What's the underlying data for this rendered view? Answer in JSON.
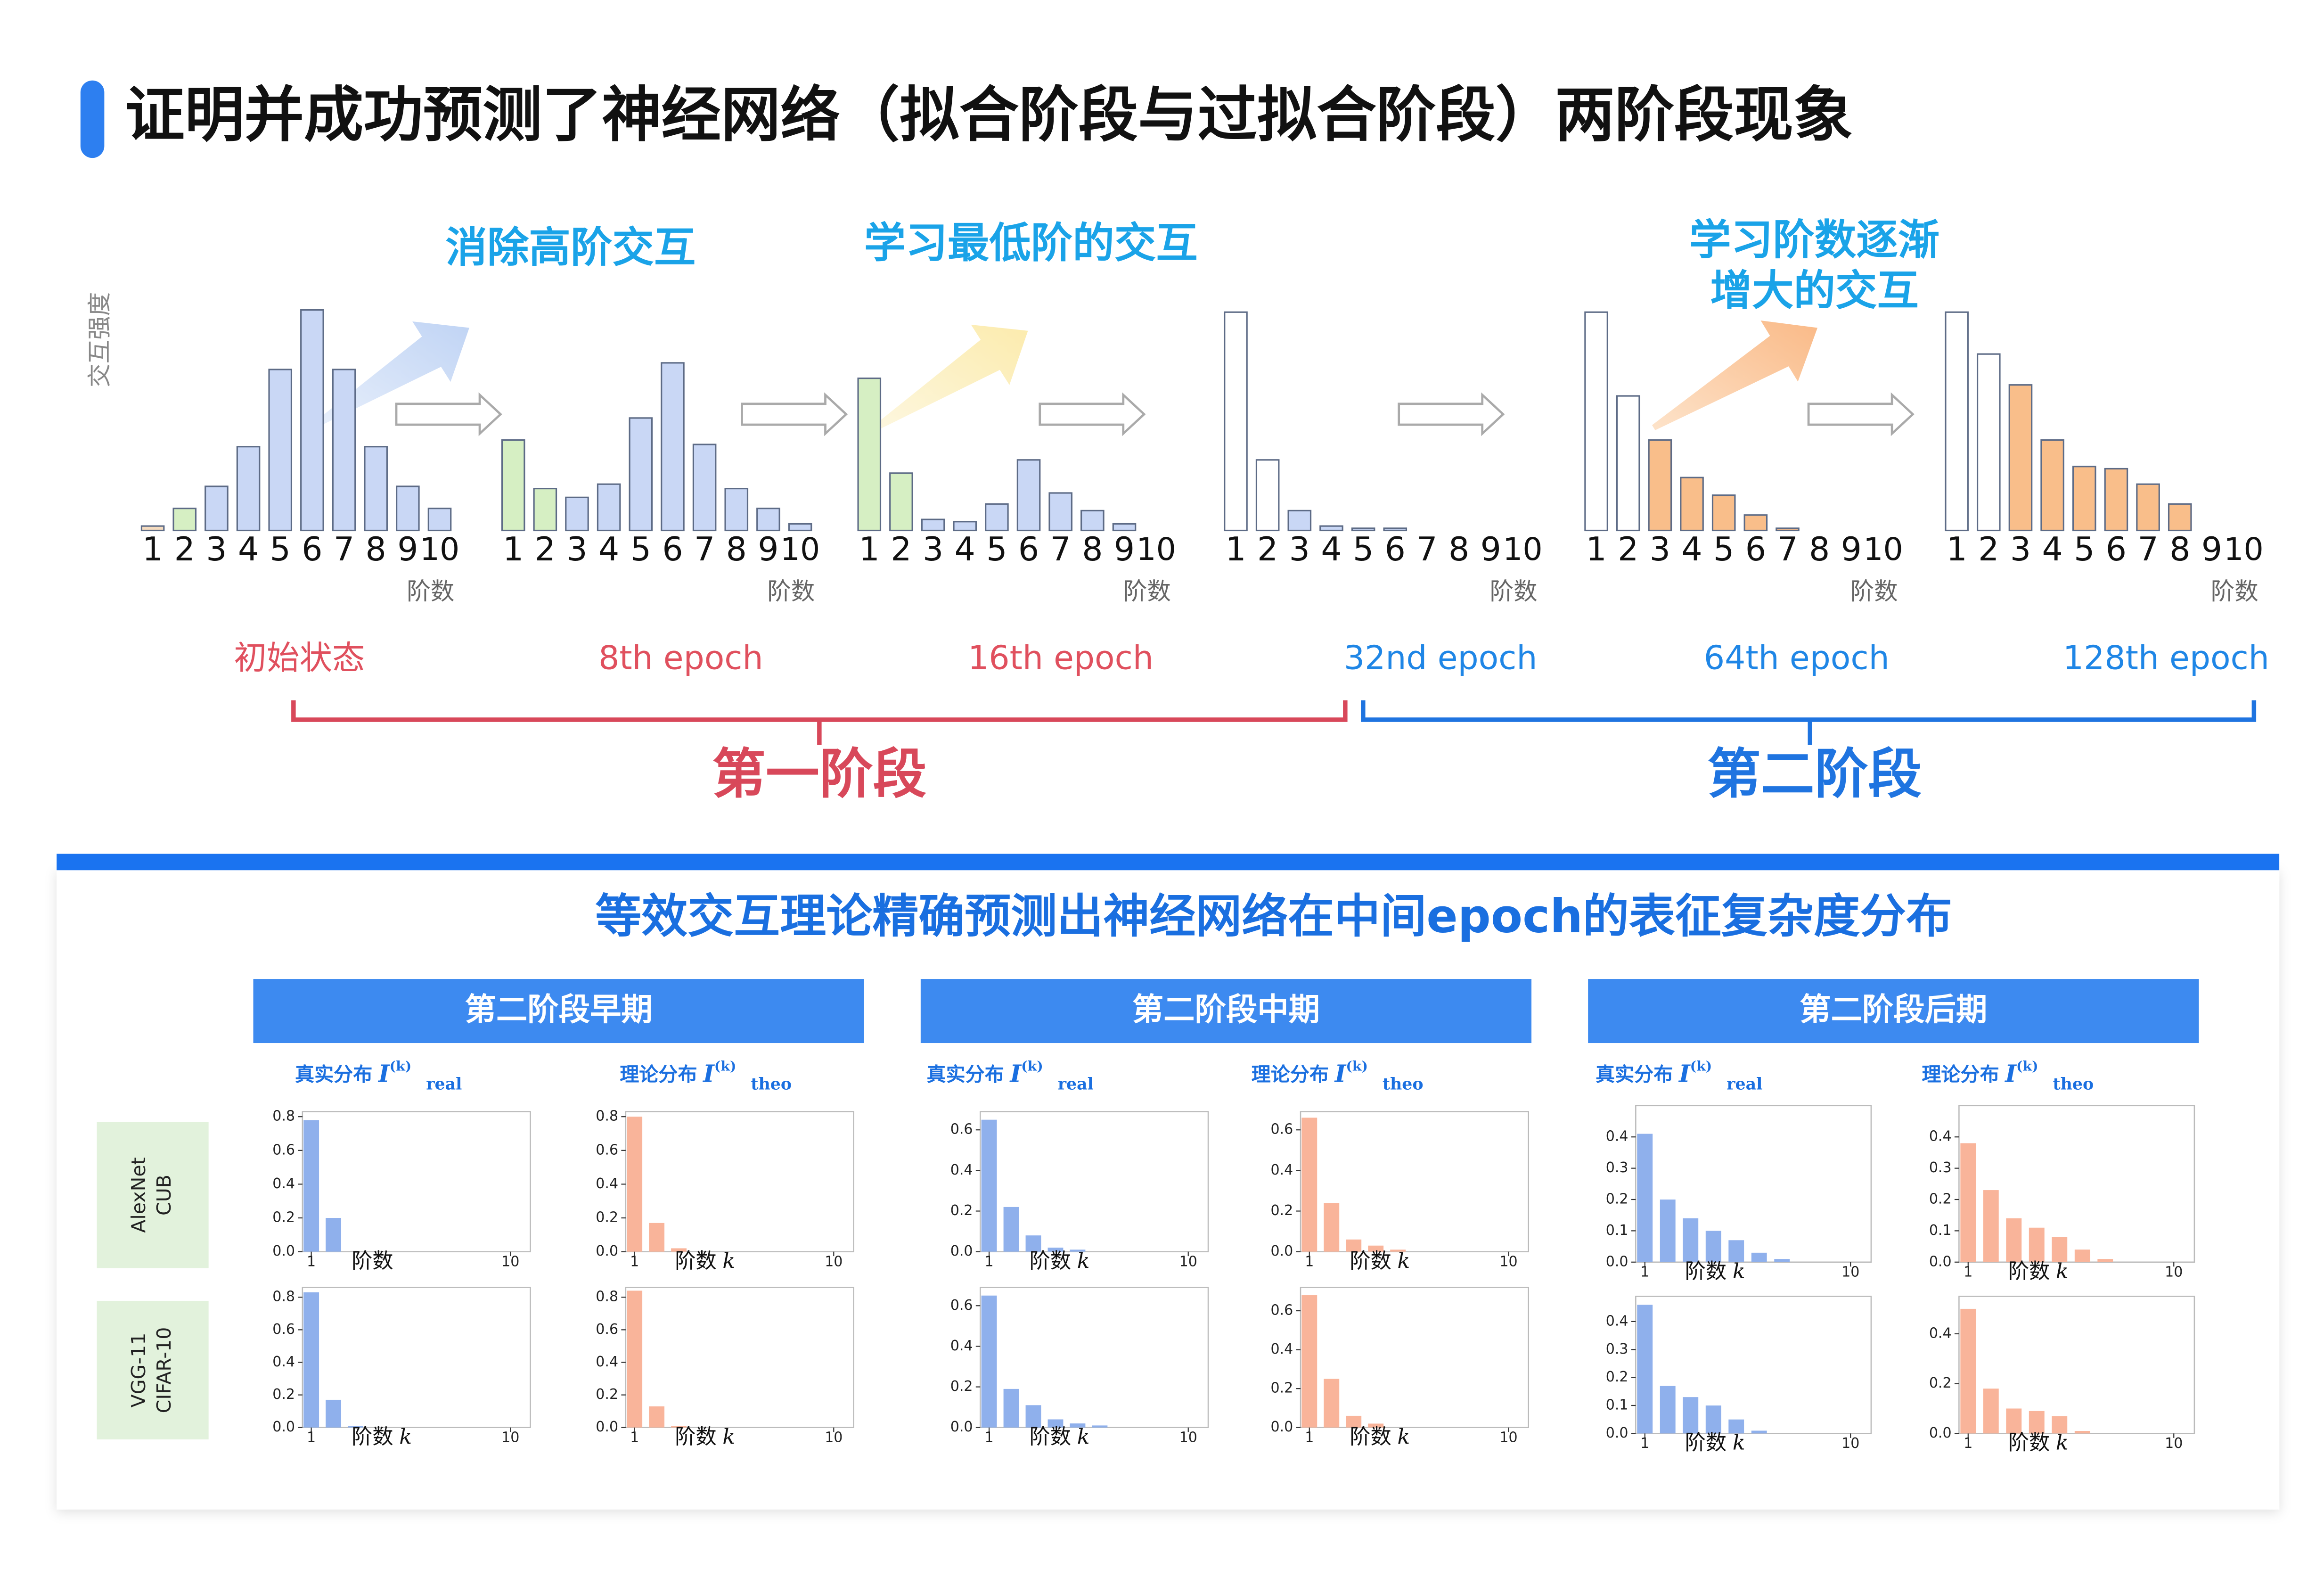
{
  "header": {
    "title": "证明并成功预测了神经网络（拟合阶段与过拟合阶段）两阶段现象"
  },
  "top": {
    "ylabel": "交互强度",
    "annotations": [
      [
        "消除高阶交互"
      ],
      [
        "学习最低阶的交互"
      ],
      [
        "学习阶数逐渐",
        "增大的交互"
      ]
    ],
    "phases": [
      "第一阶段",
      "第二阶段"
    ]
  },
  "chart_data": [
    {
      "type": "bar",
      "caption": "初始状态",
      "caption_color": "#e0505e",
      "xlabel": "阶数",
      "categories": [
        "1",
        "2",
        "3",
        "4",
        "5",
        "6",
        "7",
        "8",
        "9",
        "10"
      ],
      "ylim": [
        0,
        1
      ],
      "values": [
        0.02,
        0.1,
        0.2,
        0.38,
        0.73,
        1.0,
        0.73,
        0.38,
        0.2,
        0.1
      ],
      "colors": [
        "#f5dcc0",
        "#d6efc3",
        "#c9d7f5",
        "#c9d7f5",
        "#c9d7f5",
        "#c9d7f5",
        "#c9d7f5",
        "#c9d7f5",
        "#c9d7f5",
        "#c9d7f5"
      ]
    },
    {
      "type": "bar",
      "caption": "8th epoch",
      "caption_color": "#e0505e",
      "xlabel": "阶数",
      "categories": [
        "1",
        "2",
        "3",
        "4",
        "5",
        "6",
        "7",
        "8",
        "9",
        "10"
      ],
      "ylim": [
        0,
        1
      ],
      "values": [
        0.41,
        0.19,
        0.15,
        0.21,
        0.51,
        0.76,
        0.39,
        0.19,
        0.1,
        0.03
      ],
      "colors": [
        "#d6efc3",
        "#d6efc3",
        "#c9d7f5",
        "#c9d7f5",
        "#c9d7f5",
        "#c9d7f5",
        "#c9d7f5",
        "#c9d7f5",
        "#c9d7f5",
        "#c9d7f5"
      ]
    },
    {
      "type": "bar",
      "caption": "16th epoch",
      "caption_color": "#e0505e",
      "xlabel": "阶数",
      "categories": [
        "1",
        "2",
        "3",
        "4",
        "5",
        "6",
        "7",
        "8",
        "9",
        "10"
      ],
      "ylim": [
        0,
        1
      ],
      "values": [
        0.69,
        0.26,
        0.05,
        0.04,
        0.12,
        0.32,
        0.17,
        0.09,
        0.03,
        0
      ],
      "colors": [
        "#d6efc3",
        "#d6efc3",
        "#c9d7f5",
        "#c9d7f5",
        "#c9d7f5",
        "#c9d7f5",
        "#c9d7f5",
        "#c9d7f5",
        "#c9d7f5",
        "#c9d7f5"
      ]
    },
    {
      "type": "bar",
      "caption": "32nd epoch",
      "caption_color": "#1f86e6",
      "xlabel": "阶数",
      "categories": [
        "1",
        "2",
        "3",
        "4",
        "5",
        "6",
        "7",
        "8",
        "9",
        "10"
      ],
      "ylim": [
        0,
        1
      ],
      "values": [
        0.99,
        0.32,
        0.09,
        0.02,
        0.01,
        0.01,
        0,
        0,
        0,
        0
      ],
      "colors": [
        "#ffffff",
        "#ffffff",
        "#c9d7f5",
        "#c9d7f5",
        "#c9d7f5",
        "#c9d7f5",
        "#c9d7f5",
        "#c9d7f5",
        "#c9d7f5",
        "#c9d7f5"
      ]
    },
    {
      "type": "bar",
      "caption": "64th epoch",
      "caption_color": "#1f86e6",
      "xlabel": "阶数",
      "categories": [
        "1",
        "2",
        "3",
        "4",
        "5",
        "6",
        "7",
        "8",
        "9",
        "10"
      ],
      "ylim": [
        0,
        1
      ],
      "values": [
        0.99,
        0.61,
        0.41,
        0.24,
        0.16,
        0.07,
        0.01,
        0,
        0,
        0
      ],
      "colors": [
        "#ffffff",
        "#ffffff",
        "#f9be8a",
        "#f9be8a",
        "#f9be8a",
        "#f9be8a",
        "#f9be8a",
        "#f9be8a",
        "#f9be8a",
        "#f9be8a"
      ]
    },
    {
      "type": "bar",
      "caption": "128th epoch",
      "caption_color": "#1f86e6",
      "xlabel": "阶数",
      "categories": [
        "1",
        "2",
        "3",
        "4",
        "5",
        "6",
        "7",
        "8",
        "9",
        "10"
      ],
      "ylim": [
        0,
        1
      ],
      "values": [
        0.99,
        0.8,
        0.66,
        0.41,
        0.29,
        0.28,
        0.21,
        0.12,
        0,
        0
      ],
      "colors": [
        "#ffffff",
        "#ffffff",
        "#f9be8a",
        "#f9be8a",
        "#f9be8a",
        "#f9be8a",
        "#f9be8a",
        "#f9be8a",
        "#f9be8a",
        "#f9be8a"
      ]
    },
    {
      "type": "bar",
      "title": "真实分布",
      "symbol": "I",
      "superscript": "(k)",
      "subscript": "real",
      "xlabel": "阶数",
      "color": "#8fb0ec",
      "x": [
        1,
        2,
        3,
        4,
        5,
        6,
        7,
        8,
        9,
        10
      ],
      "xlim": [
        0.6,
        10.9
      ],
      "xticks": [
        1,
        10
      ],
      "ylim": [
        0,
        0.83
      ],
      "yticks": [
        {
          "value": 0,
          "label": "0.0"
        },
        0.2,
        0.4,
        0.6,
        0.8
      ],
      "values": [
        0.78,
        0.2,
        0,
        0,
        0,
        0,
        0,
        0,
        0,
        0
      ]
    },
    {
      "type": "bar",
      "title": "理论分布",
      "symbol": "I",
      "superscript": "(k)",
      "subscript": "theo",
      "xlabel": "阶数",
      "xlabel_var": "k",
      "color": "#f9b49a",
      "x": [
        1,
        2,
        3,
        4,
        5,
        6,
        7,
        8,
        9,
        10
      ],
      "xlim": [
        0.6,
        10.9
      ],
      "xticks": [
        1,
        10
      ],
      "ylim": [
        0,
        0.83
      ],
      "yticks": [
        {
          "value": 0,
          "label": "0.0"
        },
        0.2,
        0.4,
        0.6,
        0.8
      ],
      "values": [
        0.8,
        0.17,
        0.02,
        0,
        0,
        0,
        0,
        0,
        0,
        0
      ]
    },
    {
      "type": "bar",
      "title": "真实分布",
      "symbol": "I",
      "superscript": "(k)",
      "subscript": "real",
      "xlabel": "阶数",
      "xlabel_var": "k",
      "color": "#8fb0ec",
      "x": [
        1,
        2,
        3,
        4,
        5,
        6,
        7,
        8,
        9,
        10
      ],
      "xlim": [
        0.6,
        10.9
      ],
      "xticks": [
        1,
        10
      ],
      "ylim": [
        0,
        0.69
      ],
      "yticks": [
        {
          "value": 0,
          "label": "0.0"
        },
        0.2,
        0.4,
        0.6
      ],
      "values": [
        0.65,
        0.22,
        0.08,
        0.02,
        0.01,
        0,
        0,
        0,
        0,
        0
      ]
    },
    {
      "type": "bar",
      "title": "理论分布",
      "symbol": "I",
      "superscript": "(k)",
      "subscript": "theo",
      "xlabel": "阶数",
      "xlabel_var": "k",
      "color": "#f9b49a",
      "x": [
        1,
        2,
        3,
        4,
        5,
        6,
        7,
        8,
        9,
        10
      ],
      "xlim": [
        0.6,
        10.9
      ],
      "xticks": [
        1,
        10
      ],
      "ylim": [
        0,
        0.69
      ],
      "yticks": [
        {
          "value": 0,
          "label": "0.0"
        },
        0.2,
        0.4,
        0.6
      ],
      "values": [
        0.66,
        0.24,
        0.06,
        0.03,
        0.01,
        0,
        0,
        0,
        0,
        0
      ]
    },
    {
      "type": "bar",
      "title": "真实分布",
      "symbol": "I",
      "superscript": "(k)",
      "subscript": "real",
      "xlabel": "阶数",
      "xlabel_var": "k",
      "color": "#8fb0ec",
      "x": [
        1,
        2,
        3,
        4,
        5,
        6,
        7,
        8,
        9,
        10
      ],
      "xlim": [
        0.6,
        10.9
      ],
      "xticks": [
        1,
        10
      ],
      "ylim": [
        0,
        0.5
      ],
      "yticks": [
        {
          "value": 0,
          "label": "0.0"
        },
        0.1,
        0.2,
        0.3,
        0.4
      ],
      "values": [
        0.41,
        0.2,
        0.14,
        0.1,
        0.07,
        0.03,
        0.01,
        0,
        0,
        0
      ]
    },
    {
      "type": "bar",
      "title": "理论分布",
      "symbol": "I",
      "superscript": "(k)",
      "subscript": "theo",
      "xlabel": "阶数",
      "xlabel_var": "k",
      "color": "#f9b49a",
      "x": [
        1,
        2,
        3,
        4,
        5,
        6,
        7,
        8,
        9,
        10
      ],
      "xlim": [
        0.6,
        10.9
      ],
      "xticks": [
        1,
        10
      ],
      "ylim": [
        0,
        0.5
      ],
      "yticks": [
        {
          "value": 0,
          "label": "0.0"
        },
        0.1,
        0.2,
        0.3,
        0.4
      ],
      "values": [
        0.38,
        0.23,
        0.14,
        0.11,
        0.08,
        0.04,
        0.01,
        0,
        0,
        0
      ]
    },
    {
      "type": "bar",
      "xlabel": "阶数",
      "xlabel_var": "k",
      "color": "#8fb0ec",
      "x": [
        1,
        2,
        3,
        4,
        5,
        6,
        7,
        8,
        9,
        10
      ],
      "xlim": [
        0.6,
        10.9
      ],
      "xticks": [
        1,
        10
      ],
      "ylim": [
        0,
        0.86
      ],
      "yticks": [
        {
          "value": 0,
          "label": "0.0"
        },
        0.2,
        0.4,
        0.6,
        0.8
      ],
      "values": [
        0.83,
        0.17,
        0.01,
        0,
        0,
        0,
        0,
        0,
        0,
        0
      ]
    },
    {
      "type": "bar",
      "xlabel": "阶数",
      "xlabel_var": "k",
      "color": "#f9b49a",
      "x": [
        1,
        2,
        3,
        4,
        5,
        6,
        7,
        8,
        9,
        10
      ],
      "xlim": [
        0.6,
        10.9
      ],
      "xticks": [
        1,
        10
      ],
      "ylim": [
        0,
        0.86
      ],
      "yticks": [
        {
          "value": 0,
          "label": "0.0"
        },
        0.2,
        0.4,
        0.6,
        0.8
      ],
      "values": [
        0.84,
        0.13,
        0.01,
        0,
        0,
        0,
        0,
        0,
        0,
        0
      ]
    },
    {
      "type": "bar",
      "xlabel": "阶数",
      "xlabel_var": "k",
      "color": "#8fb0ec",
      "x": [
        1,
        2,
        3,
        4,
        5,
        6,
        7,
        8,
        9,
        10
      ],
      "xlim": [
        0.6,
        10.9
      ],
      "xticks": [
        1,
        10
      ],
      "ylim": [
        0,
        0.69
      ],
      "yticks": [
        {
          "value": 0,
          "label": "0.0"
        },
        0.2,
        0.4,
        0.6
      ],
      "values": [
        0.65,
        0.19,
        0.11,
        0.04,
        0.02,
        0.01,
        0,
        0,
        0,
        0
      ]
    },
    {
      "type": "bar",
      "xlabel": "阶数",
      "xlabel_var": "k",
      "color": "#f9b49a",
      "x": [
        1,
        2,
        3,
        4,
        5,
        6,
        7,
        8,
        9,
        10
      ],
      "xlim": [
        0.6,
        10.9
      ],
      "xticks": [
        1,
        10
      ],
      "ylim": [
        0,
        0.72
      ],
      "yticks": [
        {
          "value": 0,
          "label": "0.0"
        },
        0.2,
        0.4,
        0.6
      ],
      "values": [
        0.68,
        0.25,
        0.06,
        0.02,
        0,
        0,
        0,
        0,
        0,
        0
      ]
    },
    {
      "type": "bar",
      "xlabel": "阶数",
      "xlabel_var": "k",
      "color": "#8fb0ec",
      "x": [
        1,
        2,
        3,
        4,
        5,
        6,
        7,
        8,
        9,
        10
      ],
      "xlim": [
        0.6,
        10.9
      ],
      "xticks": [
        1,
        10
      ],
      "ylim": [
        0,
        0.49
      ],
      "yticks": [
        {
          "value": 0,
          "label": "0.0"
        },
        0.1,
        0.2,
        0.3,
        0.4
      ],
      "values": [
        0.46,
        0.17,
        0.13,
        0.1,
        0.05,
        0.01,
        0,
        0,
        0,
        0
      ]
    },
    {
      "type": "bar",
      "xlabel": "阶数",
      "xlabel_var": "k",
      "color": "#f9b49a",
      "x": [
        1,
        2,
        3,
        4,
        5,
        6,
        7,
        8,
        9,
        10
      ],
      "xlim": [
        0.6,
        10.9
      ],
      "xticks": [
        1,
        10
      ],
      "ylim": [
        0,
        0.55
      ],
      "yticks": [
        {
          "value": 0,
          "label": "0.0"
        },
        0.2,
        0.4
      ],
      "values": [
        0.5,
        0.18,
        0.1,
        0.09,
        0.07,
        0.01,
        0,
        0,
        0,
        0
      ]
    }
  ],
  "bottom": {
    "title": "等效交互理论精确预测出神经网络在中间epoch的表征复杂度分布",
    "columns": [
      "第二阶段早期",
      "第二阶段中期",
      "第二阶段后期"
    ],
    "rows": [
      [
        "AlexNet",
        "CUB"
      ],
      [
        "VGG-11",
        "CIFAR-10"
      ]
    ]
  }
}
